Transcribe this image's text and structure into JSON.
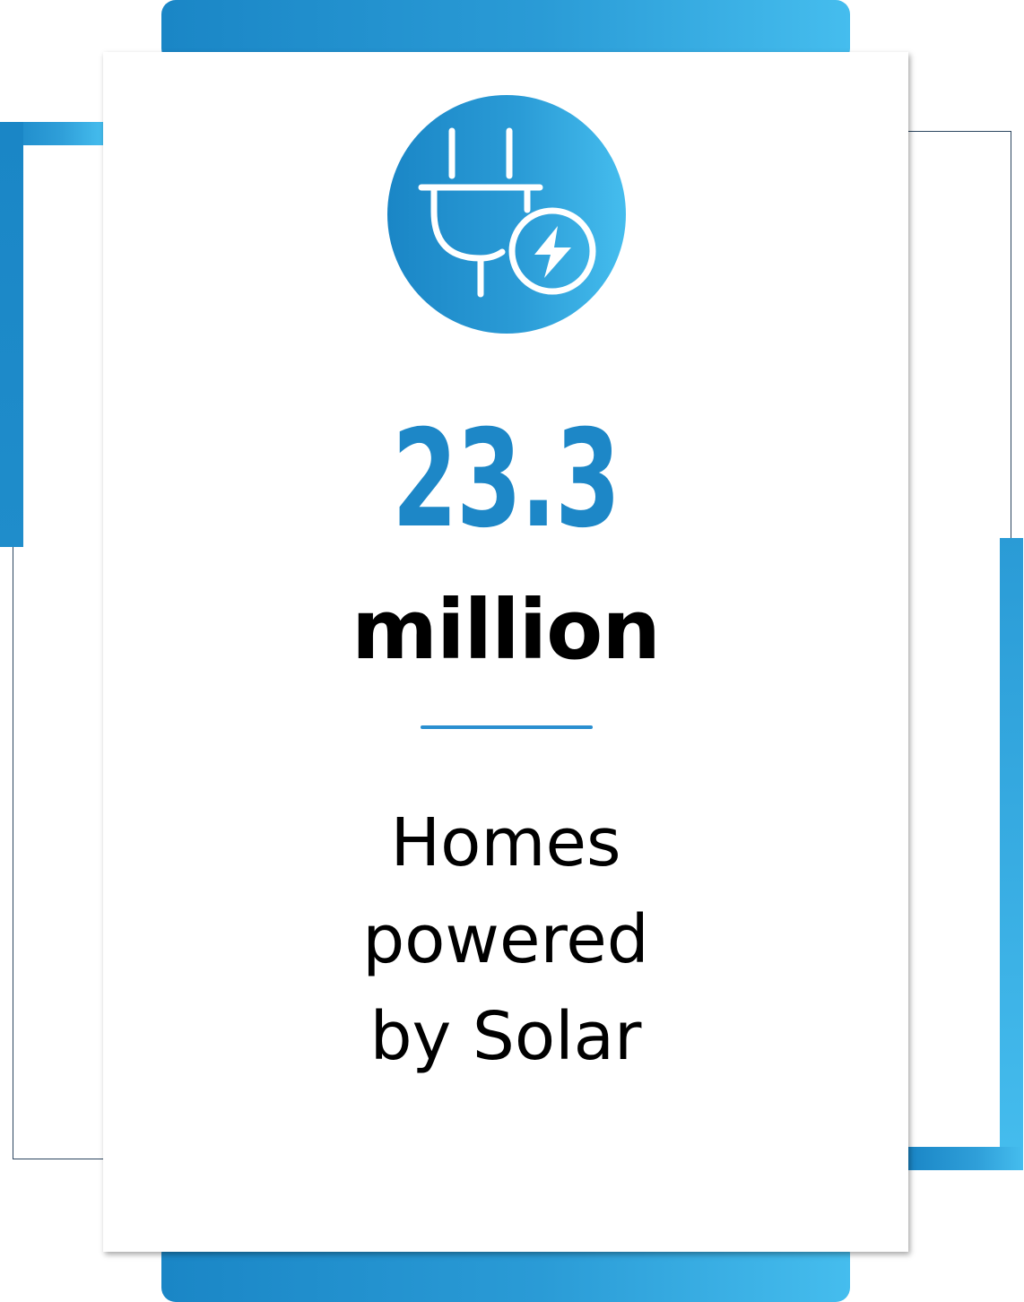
{
  "stat": {
    "value": "23.3",
    "unit": "million",
    "caption_lines": [
      "Homes",
      "powered",
      "by Solar"
    ]
  },
  "icon": {
    "name": "plug-with-lightning-icon"
  },
  "colors": {
    "accent": "#1d87c7",
    "accent_light": "#45bdee",
    "frame_line": "#2c4660",
    "text": "#000000",
    "card": "#ffffff"
  }
}
